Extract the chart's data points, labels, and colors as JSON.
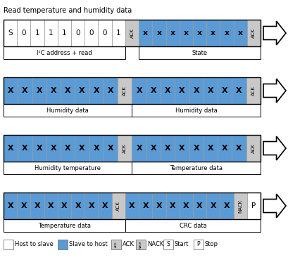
{
  "title": "Read temperature and humidity data",
  "blue": "#5b9bd5",
  "white": "#ffffff",
  "gray": "#c8c8c8",
  "rows": [
    {
      "cells": [
        {
          "text": "S",
          "color": "white",
          "type": "normal"
        },
        {
          "text": "0",
          "color": "white",
          "type": "normal"
        },
        {
          "text": "1",
          "color": "white",
          "type": "normal"
        },
        {
          "text": "1",
          "color": "white",
          "type": "normal"
        },
        {
          "text": "1",
          "color": "white",
          "type": "normal"
        },
        {
          "text": "0",
          "color": "white",
          "type": "normal"
        },
        {
          "text": "0",
          "color": "white",
          "type": "normal"
        },
        {
          "text": "0",
          "color": "white",
          "type": "normal"
        },
        {
          "text": "1",
          "color": "white",
          "type": "normal"
        },
        {
          "text": "ACK",
          "color": "gray",
          "type": "ack"
        },
        {
          "text": "x",
          "color": "blue",
          "type": "x"
        },
        {
          "text": "x",
          "color": "blue",
          "type": "x"
        },
        {
          "text": "x",
          "color": "blue",
          "type": "x"
        },
        {
          "text": "x",
          "color": "blue",
          "type": "x"
        },
        {
          "text": "x",
          "color": "blue",
          "type": "x"
        },
        {
          "text": "x",
          "color": "blue",
          "type": "x"
        },
        {
          "text": "x",
          "color": "blue",
          "type": "x"
        },
        {
          "text": "x",
          "color": "blue",
          "type": "x"
        },
        {
          "text": "ACK",
          "color": "gray",
          "type": "ack"
        }
      ],
      "groups": [
        {
          "text": "I²C address + read",
          "start": 0,
          "end": 9
        },
        {
          "text": "State",
          "start": 10,
          "end": 19
        }
      ]
    },
    {
      "cells": [
        {
          "text": "X",
          "color": "blue",
          "type": "x"
        },
        {
          "text": "X",
          "color": "blue",
          "type": "x"
        },
        {
          "text": "X",
          "color": "blue",
          "type": "x"
        },
        {
          "text": "X",
          "color": "blue",
          "type": "x"
        },
        {
          "text": "X",
          "color": "blue",
          "type": "x"
        },
        {
          "text": "X",
          "color": "blue",
          "type": "x"
        },
        {
          "text": "X",
          "color": "blue",
          "type": "x"
        },
        {
          "text": "X",
          "color": "blue",
          "type": "x"
        },
        {
          "text": "ACK",
          "color": "gray",
          "type": "ack"
        },
        {
          "text": "X",
          "color": "blue",
          "type": "x"
        },
        {
          "text": "X",
          "color": "blue",
          "type": "x"
        },
        {
          "text": "X",
          "color": "blue",
          "type": "x"
        },
        {
          "text": "X",
          "color": "blue",
          "type": "x"
        },
        {
          "text": "X",
          "color": "blue",
          "type": "x"
        },
        {
          "text": "X",
          "color": "blue",
          "type": "x"
        },
        {
          "text": "X",
          "color": "blue",
          "type": "x"
        },
        {
          "text": "X",
          "color": "blue",
          "type": "x"
        },
        {
          "text": "ACK",
          "color": "gray",
          "type": "ack"
        }
      ],
      "groups": [
        {
          "text": "Humidity data",
          "start": 0,
          "end": 9
        },
        {
          "text": "Humidity data",
          "start": 9,
          "end": 18
        }
      ]
    },
    {
      "cells": [
        {
          "text": "X",
          "color": "blue",
          "type": "x"
        },
        {
          "text": "X",
          "color": "blue",
          "type": "x"
        },
        {
          "text": "X",
          "color": "blue",
          "type": "x"
        },
        {
          "text": "X",
          "color": "blue",
          "type": "x"
        },
        {
          "text": "X",
          "color": "blue",
          "type": "x"
        },
        {
          "text": "X",
          "color": "blue",
          "type": "x"
        },
        {
          "text": "X",
          "color": "blue",
          "type": "x"
        },
        {
          "text": "X",
          "color": "blue",
          "type": "x"
        },
        {
          "text": "ACK",
          "color": "gray",
          "type": "ack"
        },
        {
          "text": "X",
          "color": "blue",
          "type": "x"
        },
        {
          "text": "X",
          "color": "blue",
          "type": "x"
        },
        {
          "text": "X",
          "color": "blue",
          "type": "x"
        },
        {
          "text": "X",
          "color": "blue",
          "type": "x"
        },
        {
          "text": "X",
          "color": "blue",
          "type": "x"
        },
        {
          "text": "X",
          "color": "blue",
          "type": "x"
        },
        {
          "text": "X",
          "color": "blue",
          "type": "x"
        },
        {
          "text": "X",
          "color": "blue",
          "type": "x"
        },
        {
          "text": "ACK",
          "color": "gray",
          "type": "ack"
        }
      ],
      "groups": [
        {
          "text": "Humidity temperature",
          "start": 0,
          "end": 9
        },
        {
          "text": "Temperature data",
          "start": 9,
          "end": 18
        }
      ]
    },
    {
      "cells": [
        {
          "text": "X",
          "color": "blue",
          "type": "x"
        },
        {
          "text": "X",
          "color": "blue",
          "type": "x"
        },
        {
          "text": "X",
          "color": "blue",
          "type": "x"
        },
        {
          "text": "X",
          "color": "blue",
          "type": "x"
        },
        {
          "text": "X",
          "color": "blue",
          "type": "x"
        },
        {
          "text": "X",
          "color": "blue",
          "type": "x"
        },
        {
          "text": "X",
          "color": "blue",
          "type": "x"
        },
        {
          "text": "X",
          "color": "blue",
          "type": "x"
        },
        {
          "text": "ACK",
          "color": "gray",
          "type": "ack"
        },
        {
          "text": "X",
          "color": "blue",
          "type": "x"
        },
        {
          "text": "X",
          "color": "blue",
          "type": "x"
        },
        {
          "text": "X",
          "color": "blue",
          "type": "x"
        },
        {
          "text": "X",
          "color": "blue",
          "type": "x"
        },
        {
          "text": "X",
          "color": "blue",
          "type": "x"
        },
        {
          "text": "X",
          "color": "blue",
          "type": "x"
        },
        {
          "text": "X",
          "color": "blue",
          "type": "x"
        },
        {
          "text": "X",
          "color": "blue",
          "type": "x"
        },
        {
          "text": "NACK",
          "color": "gray",
          "type": "nack"
        },
        {
          "text": "P",
          "color": "white",
          "type": "normal"
        }
      ],
      "groups": [
        {
          "text": "Temperature data",
          "start": 0,
          "end": 9
        },
        {
          "text": "CRC data",
          "start": 9,
          "end": 19
        }
      ]
    }
  ],
  "legend_items": [
    {
      "box_color": "white",
      "inner_text": "",
      "label": "Host to slave"
    },
    {
      "box_color": "blue",
      "inner_text": "",
      "label": "Slave to host"
    },
    {
      "box_color": "gray",
      "inner_text": "ACK",
      "label": "ACK"
    },
    {
      "box_color": "gray",
      "inner_text": "NACK",
      "label": "NACK"
    },
    {
      "box_color": "white",
      "inner_text": "S",
      "label": "Start"
    },
    {
      "box_color": "white",
      "inner_text": "P",
      "label": "Stop"
    }
  ]
}
